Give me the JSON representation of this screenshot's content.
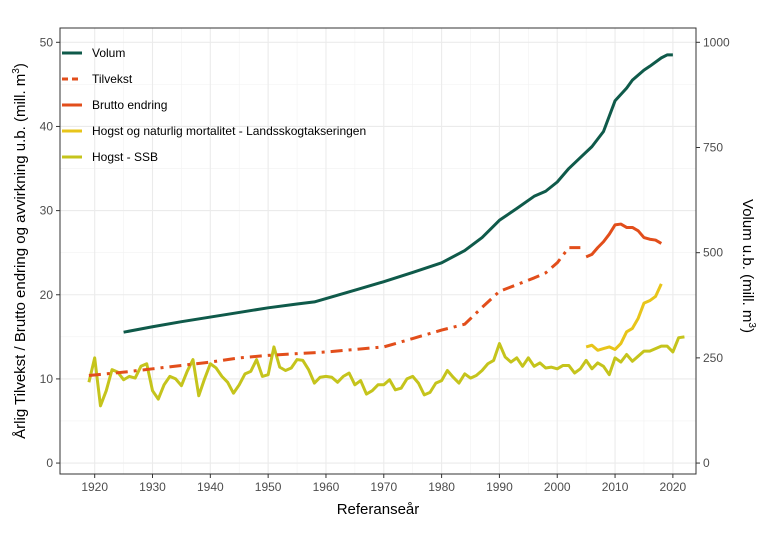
{
  "chart_data": {
    "type": "line",
    "xlabel": "Referanseår",
    "ylabel_left_main": "Årlig Tilvekst  /  Brutto endring og avvirkning u.b. (mill. m",
    "ylabel_left_sup": "3",
    "ylabel_left_end": ")",
    "ylabel_right_main": "Volum u.b. (mill. m",
    "ylabel_right_sup": "3",
    "ylabel_right_end": ")",
    "xlim": [
      1914,
      2024
    ],
    "ylim": [
      -1.3,
      51.7
    ],
    "y2lim": [
      -26,
      1034
    ],
    "x_ticks": [
      1920,
      1930,
      1940,
      1950,
      1960,
      1970,
      1980,
      1990,
      2000,
      2010,
      2020
    ],
    "y_ticks": [
      0,
      10,
      20,
      30,
      40,
      50
    ],
    "y2_ticks": [
      0,
      250,
      500,
      750,
      1000
    ],
    "grid": true,
    "legend_position": "top-left",
    "series": [
      {
        "name": "Volum",
        "axis": "right",
        "color": "#0f5a4a",
        "dash": "solid",
        "points": [
          [
            1925,
            311
          ],
          [
            1930,
            324
          ],
          [
            1935,
            336
          ],
          [
            1940,
            347
          ],
          [
            1945,
            358
          ],
          [
            1950,
            369
          ],
          [
            1955,
            378
          ],
          [
            1958,
            383
          ],
          [
            1965,
            411
          ],
          [
            1970,
            431
          ],
          [
            1975,
            453
          ],
          [
            1980,
            476
          ],
          [
            1984,
            505
          ],
          [
            1987,
            536
          ],
          [
            1990,
            577
          ],
          [
            1993,
            605
          ],
          [
            1996,
            634
          ],
          [
            1998,
            646
          ],
          [
            2000,
            668
          ],
          [
            2002,
            700
          ],
          [
            2004,
            726
          ],
          [
            2006,
            752
          ],
          [
            2008,
            788
          ],
          [
            2010,
            861
          ],
          [
            2012,
            891
          ],
          [
            2013,
            910
          ],
          [
            2015,
            934
          ],
          [
            2016,
            943
          ],
          [
            2018,
            963
          ],
          [
            2019,
            970
          ],
          [
            2020,
            970
          ]
        ]
      },
      {
        "name": "Tilvekst",
        "axis": "left",
        "color": "#e24e1b",
        "dash": "12,6,3,6",
        "points": [
          [
            1919,
            10.4
          ],
          [
            1925,
            10.8
          ],
          [
            1930,
            11.2
          ],
          [
            1935,
            11.6
          ],
          [
            1940,
            12.0
          ],
          [
            1945,
            12.5
          ],
          [
            1950,
            12.8
          ],
          [
            1955,
            13.0
          ],
          [
            1960,
            13.2
          ],
          [
            1965,
            13.5
          ],
          [
            1970,
            13.8
          ],
          [
            1975,
            14.8
          ],
          [
            1980,
            15.8
          ],
          [
            1984,
            16.5
          ],
          [
            1987,
            18.5
          ],
          [
            1990,
            20.4
          ],
          [
            1993,
            21.2
          ],
          [
            1996,
            22.0
          ],
          [
            1998,
            22.6
          ],
          [
            2000,
            23.8
          ],
          [
            2002,
            25.6
          ],
          [
            2004,
            25.6
          ]
        ]
      },
      {
        "name": "Brutto endring",
        "axis": "left",
        "color": "#e24e1b",
        "dash": "solid",
        "points": [
          [
            2005,
            24.5
          ],
          [
            2006,
            24.8
          ],
          [
            2007,
            25.6
          ],
          [
            2008,
            26.3
          ],
          [
            2009,
            27.2
          ],
          [
            2010,
            28.3
          ],
          [
            2011,
            28.4
          ],
          [
            2012,
            28.0
          ],
          [
            2013,
            28.0
          ],
          [
            2014,
            27.6
          ],
          [
            2015,
            26.8
          ],
          [
            2016,
            26.6
          ],
          [
            2017,
            26.5
          ],
          [
            2018,
            26.1
          ]
        ]
      },
      {
        "name": "Hogst og naturlig mortalitet - Landsskogtakseringen",
        "axis": "left",
        "color": "#e8c51a",
        "dash": "solid",
        "points": [
          [
            2005,
            13.8
          ],
          [
            2006,
            14.0
          ],
          [
            2007,
            13.4
          ],
          [
            2008,
            13.6
          ],
          [
            2009,
            13.8
          ],
          [
            2010,
            13.5
          ],
          [
            2011,
            14.2
          ],
          [
            2012,
            15.6
          ],
          [
            2013,
            16.0
          ],
          [
            2014,
            17.2
          ],
          [
            2015,
            19.0
          ],
          [
            2016,
            19.3
          ],
          [
            2017,
            19.8
          ],
          [
            2018,
            21.3
          ]
        ]
      },
      {
        "name": "Hogst - SSB",
        "axis": "left",
        "color": "#c5c41c",
        "dash": "solid",
        "points": [
          [
            1919,
            9.6
          ],
          [
            1920,
            12.5
          ],
          [
            1921,
            6.8
          ],
          [
            1922,
            8.6
          ],
          [
            1923,
            11.1
          ],
          [
            1924,
            10.8
          ],
          [
            1925,
            9.9
          ],
          [
            1926,
            10.3
          ],
          [
            1927,
            10.1
          ],
          [
            1928,
            11.5
          ],
          [
            1929,
            11.8
          ],
          [
            1930,
            8.6
          ],
          [
            1931,
            7.6
          ],
          [
            1932,
            9.3
          ],
          [
            1933,
            10.3
          ],
          [
            1934,
            10.0
          ],
          [
            1935,
            9.2
          ],
          [
            1936,
            10.9
          ],
          [
            1937,
            12.3
          ],
          [
            1938,
            8.0
          ],
          [
            1939,
            10.0
          ],
          [
            1940,
            11.8
          ],
          [
            1941,
            11.3
          ],
          [
            1942,
            10.3
          ],
          [
            1943,
            9.6
          ],
          [
            1944,
            8.3
          ],
          [
            1945,
            9.3
          ],
          [
            1946,
            10.6
          ],
          [
            1947,
            10.9
          ],
          [
            1948,
            12.3
          ],
          [
            1949,
            10.3
          ],
          [
            1950,
            10.5
          ],
          [
            1951,
            13.8
          ],
          [
            1952,
            11.4
          ],
          [
            1953,
            11.0
          ],
          [
            1954,
            11.3
          ],
          [
            1955,
            12.3
          ],
          [
            1956,
            12.2
          ],
          [
            1957,
            11.1
          ],
          [
            1958,
            9.5
          ],
          [
            1959,
            10.2
          ],
          [
            1960,
            10.3
          ],
          [
            1961,
            10.2
          ],
          [
            1962,
            9.6
          ],
          [
            1963,
            10.3
          ],
          [
            1964,
            10.7
          ],
          [
            1965,
            9.3
          ],
          [
            1966,
            9.8
          ],
          [
            1967,
            8.2
          ],
          [
            1968,
            8.6
          ],
          [
            1969,
            9.3
          ],
          [
            1970,
            9.3
          ],
          [
            1971,
            9.9
          ],
          [
            1972,
            8.7
          ],
          [
            1973,
            8.9
          ],
          [
            1974,
            10.0
          ],
          [
            1975,
            10.3
          ],
          [
            1976,
            9.5
          ],
          [
            1977,
            8.1
          ],
          [
            1978,
            8.4
          ],
          [
            1979,
            9.5
          ],
          [
            1980,
            9.8
          ],
          [
            1981,
            11.0
          ],
          [
            1982,
            10.2
          ],
          [
            1983,
            9.5
          ],
          [
            1984,
            10.6
          ],
          [
            1985,
            10.1
          ],
          [
            1986,
            10.4
          ],
          [
            1987,
            11.0
          ],
          [
            1988,
            11.8
          ],
          [
            1989,
            12.2
          ],
          [
            1990,
            14.2
          ],
          [
            1991,
            12.6
          ],
          [
            1992,
            12.0
          ],
          [
            1993,
            12.5
          ],
          [
            1994,
            11.5
          ],
          [
            1995,
            12.5
          ],
          [
            1996,
            11.5
          ],
          [
            1997,
            11.9
          ],
          [
            1998,
            11.3
          ],
          [
            1999,
            11.4
          ],
          [
            2000,
            11.2
          ],
          [
            2001,
            11.6
          ],
          [
            2002,
            11.6
          ],
          [
            2003,
            10.7
          ],
          [
            2004,
            11.2
          ],
          [
            2005,
            12.2
          ],
          [
            2006,
            11.2
          ],
          [
            2007,
            11.9
          ],
          [
            2008,
            11.5
          ],
          [
            2009,
            10.5
          ],
          [
            2010,
            12.5
          ],
          [
            2011,
            12.0
          ],
          [
            2012,
            12.9
          ],
          [
            2013,
            12.1
          ],
          [
            2014,
            12.7
          ],
          [
            2015,
            13.3
          ],
          [
            2016,
            13.3
          ],
          [
            2017,
            13.6
          ],
          [
            2018,
            13.9
          ],
          [
            2019,
            13.9
          ],
          [
            2020,
            13.2
          ],
          [
            2021,
            14.9
          ],
          [
            2022,
            15.0
          ]
        ]
      }
    ]
  }
}
